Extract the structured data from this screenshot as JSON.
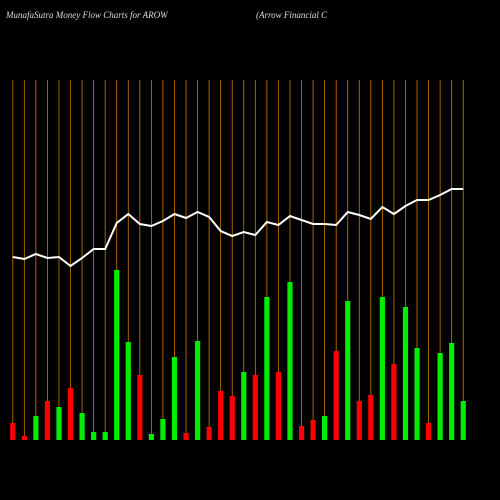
{
  "chart_data": {
    "type": "bar",
    "title": "MunafaSutra  Money Flow  Charts for AROW",
    "subtitle": "(Arrow  Financial C",
    "ylim": [
      0,
      360
    ],
    "background": "#000000",
    "grid_color": "#cc7a00",
    "categories": [
      null,
      null,
      null,
      null,
      null,
      null,
      null,
      null,
      null,
      null,
      null,
      null,
      null,
      null,
      null,
      null,
      null,
      null,
      null,
      null,
      null,
      null,
      null,
      null,
      null,
      null,
      null,
      null,
      null,
      null,
      null,
      null,
      null,
      null,
      null,
      null,
      null,
      null,
      null,
      null
    ],
    "series": [
      {
        "name": "money flow",
        "colors": [
          "#ff0000",
          "#ff0000",
          "#00ee00",
          "#ff0000",
          "#00ee00",
          "#ff0000",
          "#00ee00",
          "#00ee00",
          "#00ee00",
          "#00ee00",
          "#00ee00",
          "#ff0000",
          "#00ee00",
          "#00ee00",
          "#00ee00",
          "#ff0000",
          "#00ee00",
          "#ff0000",
          "#ff0000",
          "#ff0000",
          "#00ee00",
          "#ff0000",
          "#00ee00",
          "#ff0000",
          "#00ee00",
          "#ff0000",
          "#ff0000",
          "#00ee00",
          "#ff0000",
          "#00ee00",
          "#ff0000",
          "#ff0000",
          "#00ee00",
          "#ff0000",
          "#00ee00",
          "#00ee00",
          "#ff0000",
          "#00ee00",
          "#00ee00",
          "#00ee00"
        ],
        "values": [
          17,
          4,
          24,
          39,
          33,
          52,
          27,
          8,
          8,
          170,
          98,
          65,
          6,
          21,
          83,
          7,
          99,
          13,
          49,
          44,
          68,
          65,
          143,
          68,
          158,
          14,
          20,
          24,
          89,
          139,
          39,
          45,
          143,
          76,
          133,
          92,
          17,
          87,
          97,
          39
        ]
      },
      {
        "name": "price",
        "color": "#ffffff",
        "values": [
          183,
          181,
          186,
          182,
          183,
          174,
          182,
          191,
          191,
          217,
          226,
          216,
          214,
          219,
          226,
          222,
          228,
          223,
          209,
          204,
          208,
          205,
          218,
          215,
          224,
          220,
          216,
          216,
          215,
          228,
          225,
          221,
          233,
          226,
          234,
          240,
          240,
          245,
          251,
          251
        ]
      }
    ]
  }
}
